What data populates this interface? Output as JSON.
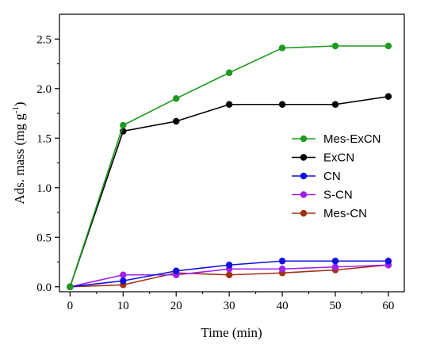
{
  "chart_data": {
    "type": "line",
    "xlabel": "Time (min)",
    "ylabel_main": "Ads. mass (mg g",
    "ylabel_sup": "-1",
    "ylabel_close": ")",
    "xlim": [
      -2,
      63
    ],
    "ylim": [
      -0.05,
      2.75
    ],
    "xticks": [
      0,
      10,
      20,
      30,
      40,
      50,
      60
    ],
    "yticks": [
      0.0,
      0.5,
      1.0,
      1.5,
      2.0,
      2.5
    ],
    "grid": false,
    "legend_position": "right-middle",
    "x": [
      0,
      10,
      20,
      30,
      40,
      50,
      60
    ],
    "series": [
      {
        "name": "Mes-ExCN",
        "color": "#1f9a1f",
        "values": [
          0.0,
          1.63,
          1.9,
          2.16,
          2.41,
          2.43,
          2.43
        ]
      },
      {
        "name": "ExCN",
        "color": "#000000",
        "values": [
          0.0,
          1.57,
          1.67,
          1.84,
          1.84,
          1.84,
          1.92
        ]
      },
      {
        "name": "CN",
        "color": "#1010e0",
        "values": [
          0.0,
          0.06,
          0.16,
          0.22,
          0.26,
          0.26,
          0.26
        ]
      },
      {
        "name": "S-CN",
        "color": "#a020f0",
        "values": [
          0.0,
          0.12,
          0.12,
          0.18,
          0.18,
          0.2,
          0.22
        ]
      },
      {
        "name": "Mes-CN",
        "color": "#a03010",
        "values": [
          0.0,
          0.02,
          0.14,
          0.12,
          0.14,
          0.17,
          0.22
        ]
      }
    ]
  }
}
